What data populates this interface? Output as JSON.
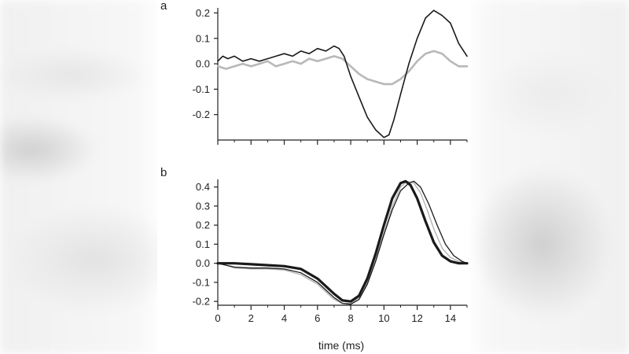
{
  "chart_data": [
    {
      "type": "line",
      "panel": "a",
      "title": "",
      "xlabel": "",
      "ylabel": "",
      "xlim": [
        0,
        15
      ],
      "ylim": [
        -0.3,
        0.22
      ],
      "yticks": [
        "0.2",
        "0.1",
        "0.0",
        "-0.1",
        "-0.2"
      ],
      "ytick_values": [
        0.2,
        0.1,
        0.0,
        -0.1,
        -0.2
      ],
      "xticks_values": [
        0,
        2,
        4,
        6,
        8,
        10,
        12,
        14
      ],
      "series": [
        {
          "name": "black",
          "color": "#1a1a1a",
          "x": [
            0,
            0.3,
            0.6,
            1,
            1.5,
            2,
            2.5,
            3,
            3.5,
            4,
            4.5,
            5,
            5.5,
            6,
            6.5,
            7,
            7.3,
            7.6,
            8,
            8.5,
            9,
            9.5,
            10,
            10.3,
            10.6,
            11,
            11.5,
            12,
            12.5,
            13,
            13.5,
            14,
            14.5,
            15
          ],
          "y": [
            0.01,
            0.03,
            0.02,
            0.03,
            0.01,
            0.02,
            0.01,
            0.02,
            0.03,
            0.04,
            0.03,
            0.05,
            0.04,
            0.06,
            0.05,
            0.07,
            0.06,
            0.03,
            -0.05,
            -0.13,
            -0.21,
            -0.26,
            -0.29,
            -0.28,
            -0.22,
            -0.12,
            0.0,
            0.1,
            0.18,
            0.21,
            0.19,
            0.16,
            0.08,
            0.03
          ]
        },
        {
          "name": "gray",
          "color": "#b8b8b8",
          "x": [
            0,
            0.5,
            1,
            1.5,
            2,
            2.5,
            3,
            3.5,
            4,
            4.5,
            5,
            5.5,
            6,
            6.5,
            7,
            7.5,
            8,
            8.5,
            9,
            9.5,
            10,
            10.5,
            11,
            11.5,
            12,
            12.5,
            13,
            13.5,
            14,
            14.5,
            15
          ],
          "y": [
            -0.01,
            -0.02,
            -0.01,
            0.0,
            -0.01,
            0.0,
            0.01,
            -0.01,
            0.0,
            0.01,
            0.0,
            0.02,
            0.01,
            0.02,
            0.03,
            0.02,
            -0.01,
            -0.04,
            -0.06,
            -0.07,
            -0.08,
            -0.08,
            -0.06,
            -0.03,
            0.01,
            0.04,
            0.05,
            0.04,
            0.01,
            -0.01,
            -0.01
          ]
        }
      ]
    },
    {
      "type": "line",
      "panel": "b",
      "title": "",
      "xlabel": "time (ms)",
      "ylabel": "",
      "xlim": [
        0,
        15
      ],
      "ylim": [
        -0.22,
        0.44
      ],
      "yticks": [
        "0.4",
        "0.3",
        "0.2",
        "0.1",
        "0.0",
        "-0.1",
        "-0.2"
      ],
      "ytick_values": [
        0.4,
        0.3,
        0.2,
        0.1,
        0.0,
        -0.1,
        -0.2
      ],
      "xticks": [
        "0",
        "2",
        "4",
        "6",
        "8",
        "10",
        "12",
        "14"
      ],
      "xtick_values": [
        0,
        2,
        4,
        6,
        8,
        10,
        12,
        14
      ],
      "series": [
        {
          "name": "thick-black",
          "color": "#1a1a1a",
          "x": [
            0,
            1,
            2,
            3,
            4,
            5,
            6,
            6.5,
            7,
            7.5,
            8,
            8.5,
            9,
            9.5,
            10,
            10.5,
            11,
            11.3,
            11.6,
            12,
            12.5,
            13,
            13.5,
            14,
            14.5,
            15
          ],
          "y": [
            0.0,
            0.0,
            -0.005,
            -0.01,
            -0.015,
            -0.03,
            -0.08,
            -0.12,
            -0.16,
            -0.195,
            -0.2,
            -0.17,
            -0.08,
            0.05,
            0.2,
            0.34,
            0.42,
            0.43,
            0.41,
            0.34,
            0.22,
            0.11,
            0.04,
            0.01,
            0.0,
            0.0
          ]
        },
        {
          "name": "thin-black",
          "color": "#1a1a1a",
          "x": [
            0,
            0.5,
            1,
            2,
            3,
            4,
            5,
            6,
            6.5,
            7,
            7.5,
            8,
            8.5,
            9,
            9.5,
            10,
            10.5,
            11,
            11.5,
            11.8,
            12.2,
            12.7,
            13.2,
            13.7,
            14.2,
            14.7,
            15
          ],
          "y": [
            0.0,
            -0.01,
            -0.02,
            -0.025,
            -0.025,
            -0.03,
            -0.05,
            -0.1,
            -0.14,
            -0.18,
            -0.21,
            -0.215,
            -0.19,
            -0.11,
            0.01,
            0.15,
            0.28,
            0.38,
            0.42,
            0.43,
            0.4,
            0.31,
            0.2,
            0.1,
            0.04,
            0.01,
            0.0
          ]
        },
        {
          "name": "gray",
          "color": "#b0b0b0",
          "x": [
            0,
            0.5,
            1,
            2,
            3,
            4,
            5,
            6,
            6.5,
            7,
            7.5,
            8,
            8.5,
            9,
            9.5,
            10,
            10.5,
            11,
            11.4,
            11.8,
            12.2,
            12.6,
            13,
            13.5,
            14,
            14.5,
            15
          ],
          "y": [
            0.0,
            -0.01,
            -0.025,
            -0.03,
            -0.03,
            -0.035,
            -0.06,
            -0.11,
            -0.15,
            -0.19,
            -0.21,
            -0.21,
            -0.18,
            -0.1,
            0.02,
            0.16,
            0.3,
            0.4,
            0.43,
            0.42,
            0.37,
            0.28,
            0.18,
            0.08,
            0.03,
            0.01,
            0.0
          ]
        }
      ]
    }
  ],
  "panels": {
    "a_label": "a",
    "b_label": "b"
  }
}
